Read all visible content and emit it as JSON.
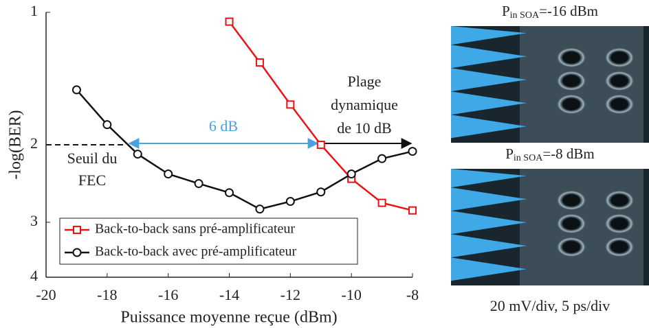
{
  "chart_data": {
    "type": "line",
    "xlabel": "Puissance moyenne reçue (dBm)",
    "ylabel": "-log(BER)",
    "xlim": [
      -20,
      -8
    ],
    "xticks": [
      -20,
      -18,
      -16,
      -14,
      -12,
      -10,
      -8
    ],
    "ylim": [
      1,
      4
    ],
    "yticks": [
      1,
      2,
      3,
      4
    ],
    "ylog": true,
    "y_inverted": true,
    "series": [
      {
        "name": "Back-to-back sans pré-amplificateur",
        "color": "#ee1111",
        "marker": "square",
        "x": [
          -14,
          -13,
          -12,
          -11,
          -10,
          -9,
          -8
        ],
        "values": [
          1.05,
          1.3,
          1.62,
          2.0,
          2.39,
          2.71,
          2.82
        ]
      },
      {
        "name": "Back-to-back avec pré-amplificateur",
        "color": "#111111",
        "marker": "circle",
        "x": [
          -19,
          -18,
          -17,
          -16,
          -15,
          -14,
          -13,
          -12,
          -11,
          -10,
          -9,
          -8
        ],
        "values": [
          1.5,
          1.8,
          2.1,
          2.33,
          2.45,
          2.57,
          2.8,
          2.69,
          2.56,
          2.33,
          2.15,
          2.07
        ]
      }
    ],
    "annotations": {
      "gap": "6 dB",
      "range": [
        "Plage",
        "dynamique",
        "de 10 dB"
      ],
      "fec": [
        "Seuil du",
        "FEC"
      ]
    }
  },
  "eye_diagrams": {
    "panels": [
      {
        "p": "P",
        "sub": "in SOA",
        "rest": "=-16 dBm"
      },
      {
        "p": "P",
        "sub": "in SOA",
        "rest": "=-8 dBm"
      }
    ],
    "caption": "20 mV/div, 5 ps/div"
  }
}
